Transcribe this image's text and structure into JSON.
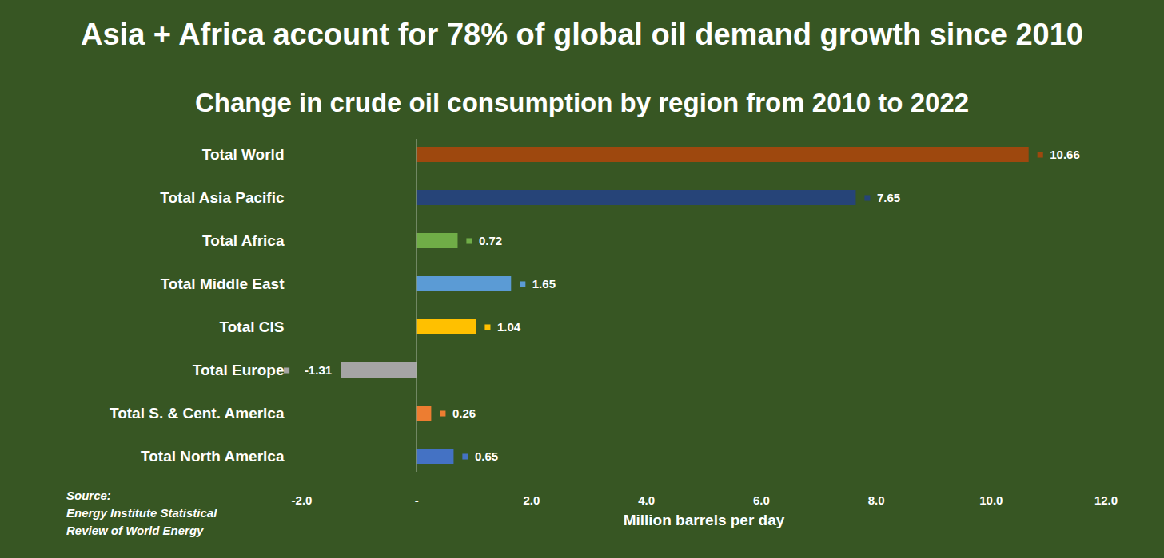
{
  "chart_data": {
    "type": "bar",
    "orientation": "horizontal",
    "title": "Asia + Africa account for 78% of global oil demand growth since 2010",
    "subtitle": "Change in crude oil consumption by region from 2010 to 2022",
    "categories": [
      "Total World",
      "Total Asia Pacific",
      "Total Africa",
      "Total Middle East",
      "Total CIS",
      "Total Europe",
      "Total S. & Cent. America",
      "Total North America"
    ],
    "values": [
      10.66,
      7.65,
      0.72,
      1.65,
      1.04,
      -1.31,
      0.26,
      0.65
    ],
    "colors": [
      "#9e480e",
      "#264478",
      "#70ad47",
      "#5b9bd5",
      "#ffc000",
      "#a5a5a5",
      "#ed7d31",
      "#4472c4"
    ],
    "x_label": "Million barrels per day",
    "xlim": [
      -2,
      12
    ],
    "xticks": [
      {
        "value": -2,
        "label": "-2.0"
      },
      {
        "value": 0,
        "label": "-"
      },
      {
        "value": 2,
        "label": "2.0"
      },
      {
        "value": 4,
        "label": "4.0"
      },
      {
        "value": 6,
        "label": "6.0"
      },
      {
        "value": 8,
        "label": "8.0"
      },
      {
        "value": 10,
        "label": "10.0"
      },
      {
        "value": 12,
        "label": "12.0"
      }
    ],
    "grid": false,
    "data_labels": true,
    "source": "Source:\nEnergy Institute Statistical\nReview of World Energy"
  }
}
